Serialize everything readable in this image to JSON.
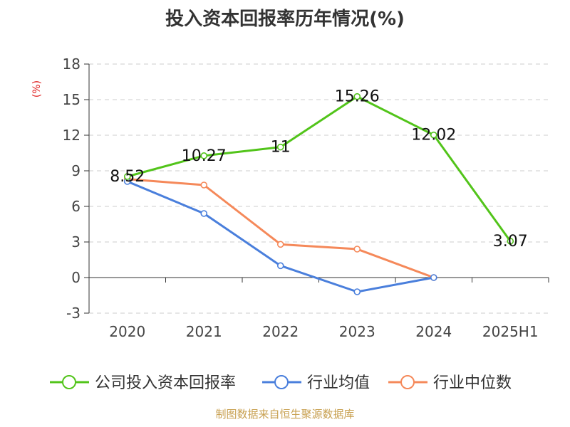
{
  "chart_data": {
    "type": "line",
    "title": "投入资本回报率历年情况(%)",
    "ylabel": "(%)",
    "categories": [
      "2020",
      "2021",
      "2022",
      "2023",
      "2024",
      "2025H1"
    ],
    "ylim": [
      -3,
      18
    ],
    "yticks": [
      -3,
      0,
      3,
      6,
      9,
      12,
      15,
      18
    ],
    "grid": true,
    "legend_position": "bottom",
    "series": [
      {
        "name": "公司投入资本回报率",
        "color": "#52c41a",
        "values": [
          8.52,
          10.27,
          11,
          15.26,
          12.02,
          3.07
        ],
        "labels": [
          "8.52",
          "10.27",
          "11",
          "15.26",
          "12.02",
          "3.07"
        ]
      },
      {
        "name": "行业均值",
        "color": "#4a7fdc",
        "values": [
          8.1,
          5.4,
          1.0,
          -1.2,
          0.0,
          null
        ]
      },
      {
        "name": "行业中位数",
        "color": "#f5895a",
        "values": [
          8.3,
          7.8,
          2.8,
          2.4,
          0.0,
          null
        ]
      }
    ]
  },
  "source": "制图数据来自恒生聚源数据库"
}
